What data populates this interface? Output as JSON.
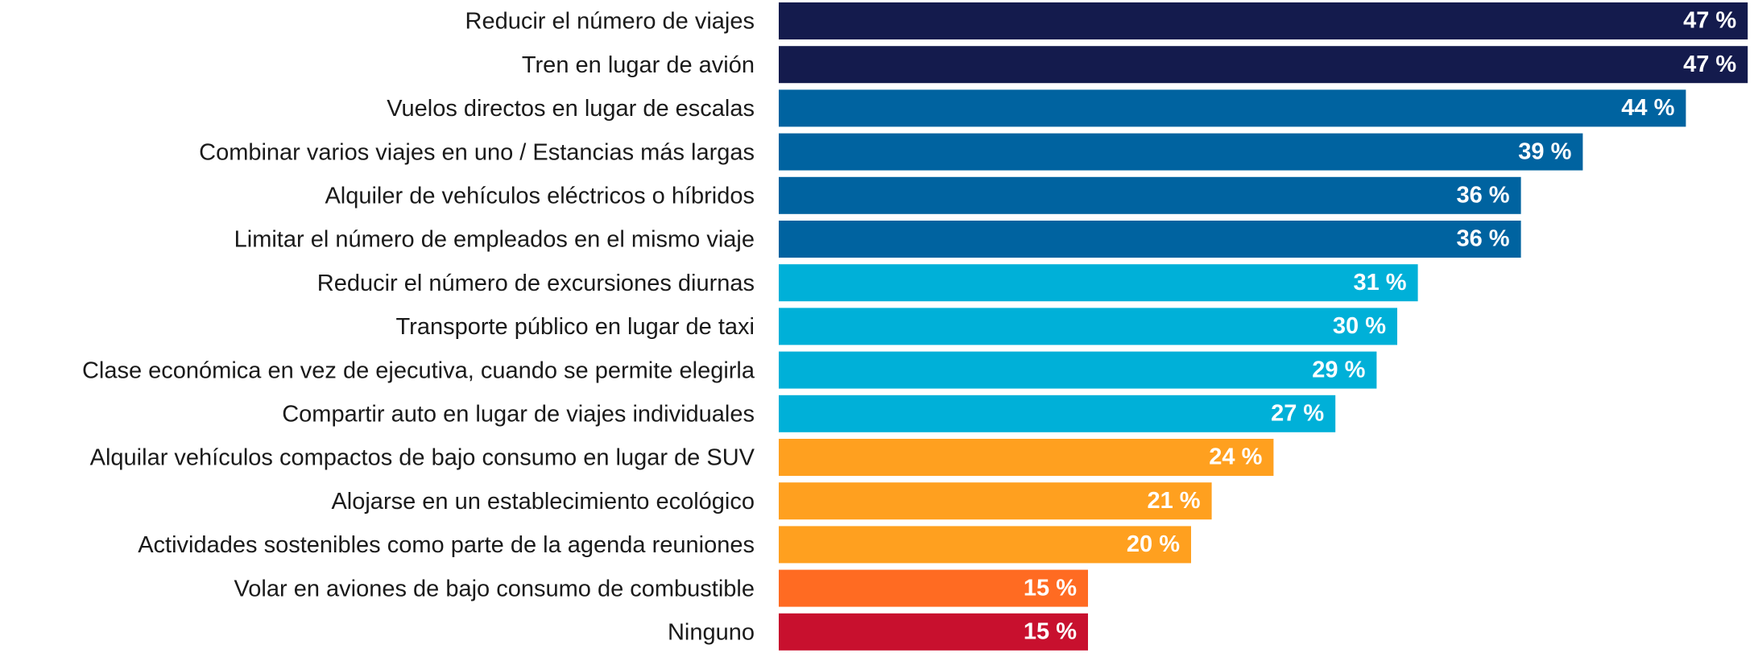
{
  "chart_data": {
    "type": "barh",
    "categories": [
      "Reducir el número de viajes",
      "Tren en lugar de avión",
      "Vuelos directos en lugar de escalas",
      "Combinar varios viajes en uno / Estancias más largas",
      "Alquiler de vehículos eléctricos o híbridos",
      "Limitar el número de empleados en el mismo viaje",
      "Reducir el número de excursiones diurnas",
      "Transporte público en lugar de taxi",
      "Clase económica en vez de ejecutiva, cuando se permite elegirla",
      "Compartir auto en lugar de viajes individuales",
      "Alquilar vehículos compactos de bajo consumo en lugar de SUV",
      "Alojarse en un establecimiento ecológico",
      "Actividades sostenibles como parte de la agenda reuniones",
      "Volar en aviones de bajo consumo de combustible",
      "Ninguno"
    ],
    "values": [
      47,
      47,
      44,
      39,
      36,
      36,
      31,
      30,
      29,
      27,
      24,
      21,
      20,
      15,
      15
    ],
    "value_labels": [
      "47 %",
      "47 %",
      "44 %",
      "39 %",
      "36 %",
      "36 %",
      "31 %",
      "30 %",
      "29 %",
      "27 %",
      "24 %",
      "21 %",
      "20 %",
      "15 %",
      "15 %"
    ],
    "colors": [
      "#141b4d",
      "#141b4d",
      "#0063a0",
      "#0063a0",
      "#0063a0",
      "#0063a0",
      "#00b0d8",
      "#00b0d8",
      "#00b0d8",
      "#00b0d8",
      "#ffa01f",
      "#ffa01f",
      "#ffa01f",
      "#ff6b22",
      "#c8102e"
    ]
  }
}
